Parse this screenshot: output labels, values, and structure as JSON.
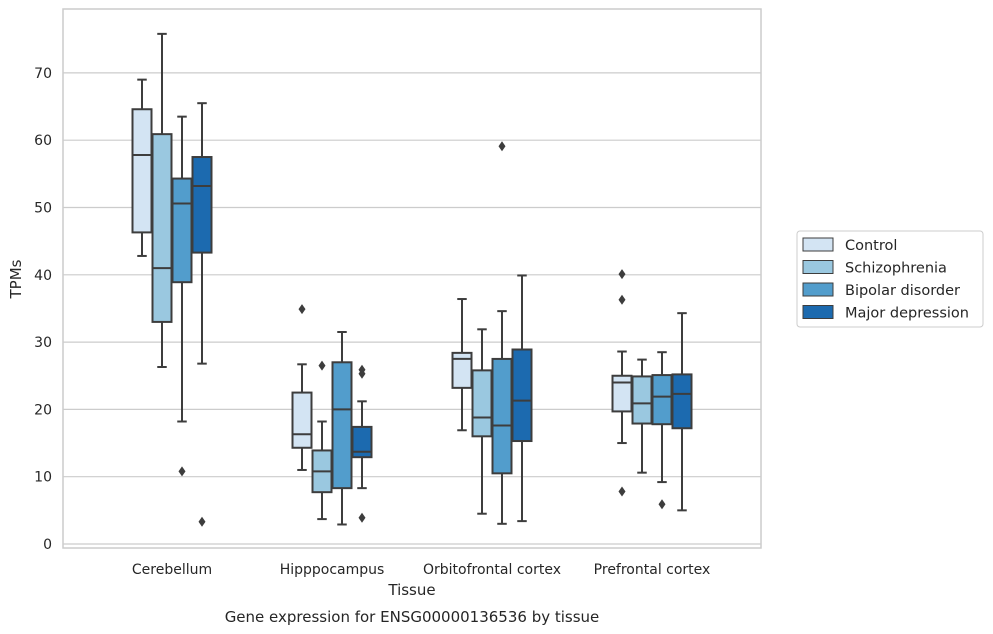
{
  "chart_data": {
    "type": "box",
    "xlabel": "Tissue",
    "ylabel": "TPMs",
    "caption": "Gene expression for ENSG00000136536 by tissue",
    "ylim": [
      -0.5,
      79
    ],
    "yticks": [
      0,
      10,
      20,
      30,
      40,
      50,
      60,
      70
    ],
    "grid": "horizontal",
    "legend_position": "right",
    "categories": [
      "Cerebellum",
      "Hipppocampus",
      "Orbitofrontal cortex",
      "Prefrontal cortex"
    ],
    "series": [
      {
        "name": "Control",
        "color": "#d3e4f3",
        "boxes": [
          {
            "whislo": 42.8,
            "q1": 46.3,
            "med": 57.8,
            "q3": 64.6,
            "whishi": 69.0,
            "fliers": []
          },
          {
            "whislo": 11.0,
            "q1": 14.3,
            "med": 16.3,
            "q3": 22.5,
            "whishi": 26.7,
            "fliers": [
              34.9
            ]
          },
          {
            "whislo": 16.9,
            "q1": 23.2,
            "med": 27.5,
            "q3": 28.4,
            "whishi": 36.4,
            "fliers": []
          },
          {
            "whislo": 15.0,
            "q1": 19.7,
            "med": 24.0,
            "q3": 25.0,
            "whishi": 28.6,
            "fliers": [
              7.8,
              36.3,
              40.1
            ]
          }
        ]
      },
      {
        "name": "Schizophrenia",
        "color": "#9ac8e0",
        "boxes": [
          {
            "whislo": 26.3,
            "q1": 33.0,
            "med": 41.0,
            "q3": 60.9,
            "whishi": 75.8,
            "fliers": []
          },
          {
            "whislo": 3.7,
            "q1": 7.7,
            "med": 10.8,
            "q3": 13.9,
            "whishi": 18.2,
            "fliers": [
              26.5
            ]
          },
          {
            "whislo": 4.5,
            "q1": 16.0,
            "med": 18.8,
            "q3": 25.8,
            "whishi": 31.9,
            "fliers": []
          },
          {
            "whislo": 10.6,
            "q1": 17.9,
            "med": 20.9,
            "q3": 24.9,
            "whishi": 27.4,
            "fliers": []
          }
        ]
      },
      {
        "name": "Bipolar disorder",
        "color": "#529dcc",
        "boxes": [
          {
            "whislo": 18.2,
            "q1": 38.9,
            "med": 50.6,
            "q3": 54.3,
            "whishi": 63.5,
            "fliers": [
              10.8
            ]
          },
          {
            "whislo": 2.9,
            "q1": 8.3,
            "med": 20.0,
            "q3": 27.0,
            "whishi": 31.5,
            "fliers": []
          },
          {
            "whislo": 3.0,
            "q1": 10.5,
            "med": 17.6,
            "q3": 27.5,
            "whishi": 34.6,
            "fliers": [
              59.1
            ]
          },
          {
            "whislo": 9.2,
            "q1": 17.8,
            "med": 21.9,
            "q3": 25.1,
            "whishi": 28.5,
            "fliers": [
              5.9
            ]
          }
        ]
      },
      {
        "name": "Major depression",
        "color": "#1c6aaf",
        "boxes": [
          {
            "whislo": 26.8,
            "q1": 43.3,
            "med": 53.2,
            "q3": 57.5,
            "whishi": 65.5,
            "fliers": [
              3.3
            ]
          },
          {
            "whislo": 8.3,
            "q1": 12.9,
            "med": 13.7,
            "q3": 17.4,
            "whishi": 21.2,
            "fliers": [
              3.9,
              25.3,
              25.9
            ]
          },
          {
            "whislo": 3.4,
            "q1": 15.3,
            "med": 21.3,
            "q3": 28.9,
            "whishi": 39.9,
            "fliers": []
          },
          {
            "whislo": 5.0,
            "q1": 17.2,
            "med": 22.3,
            "q3": 25.2,
            "whishi": 34.3,
            "fliers": []
          }
        ]
      }
    ]
  }
}
